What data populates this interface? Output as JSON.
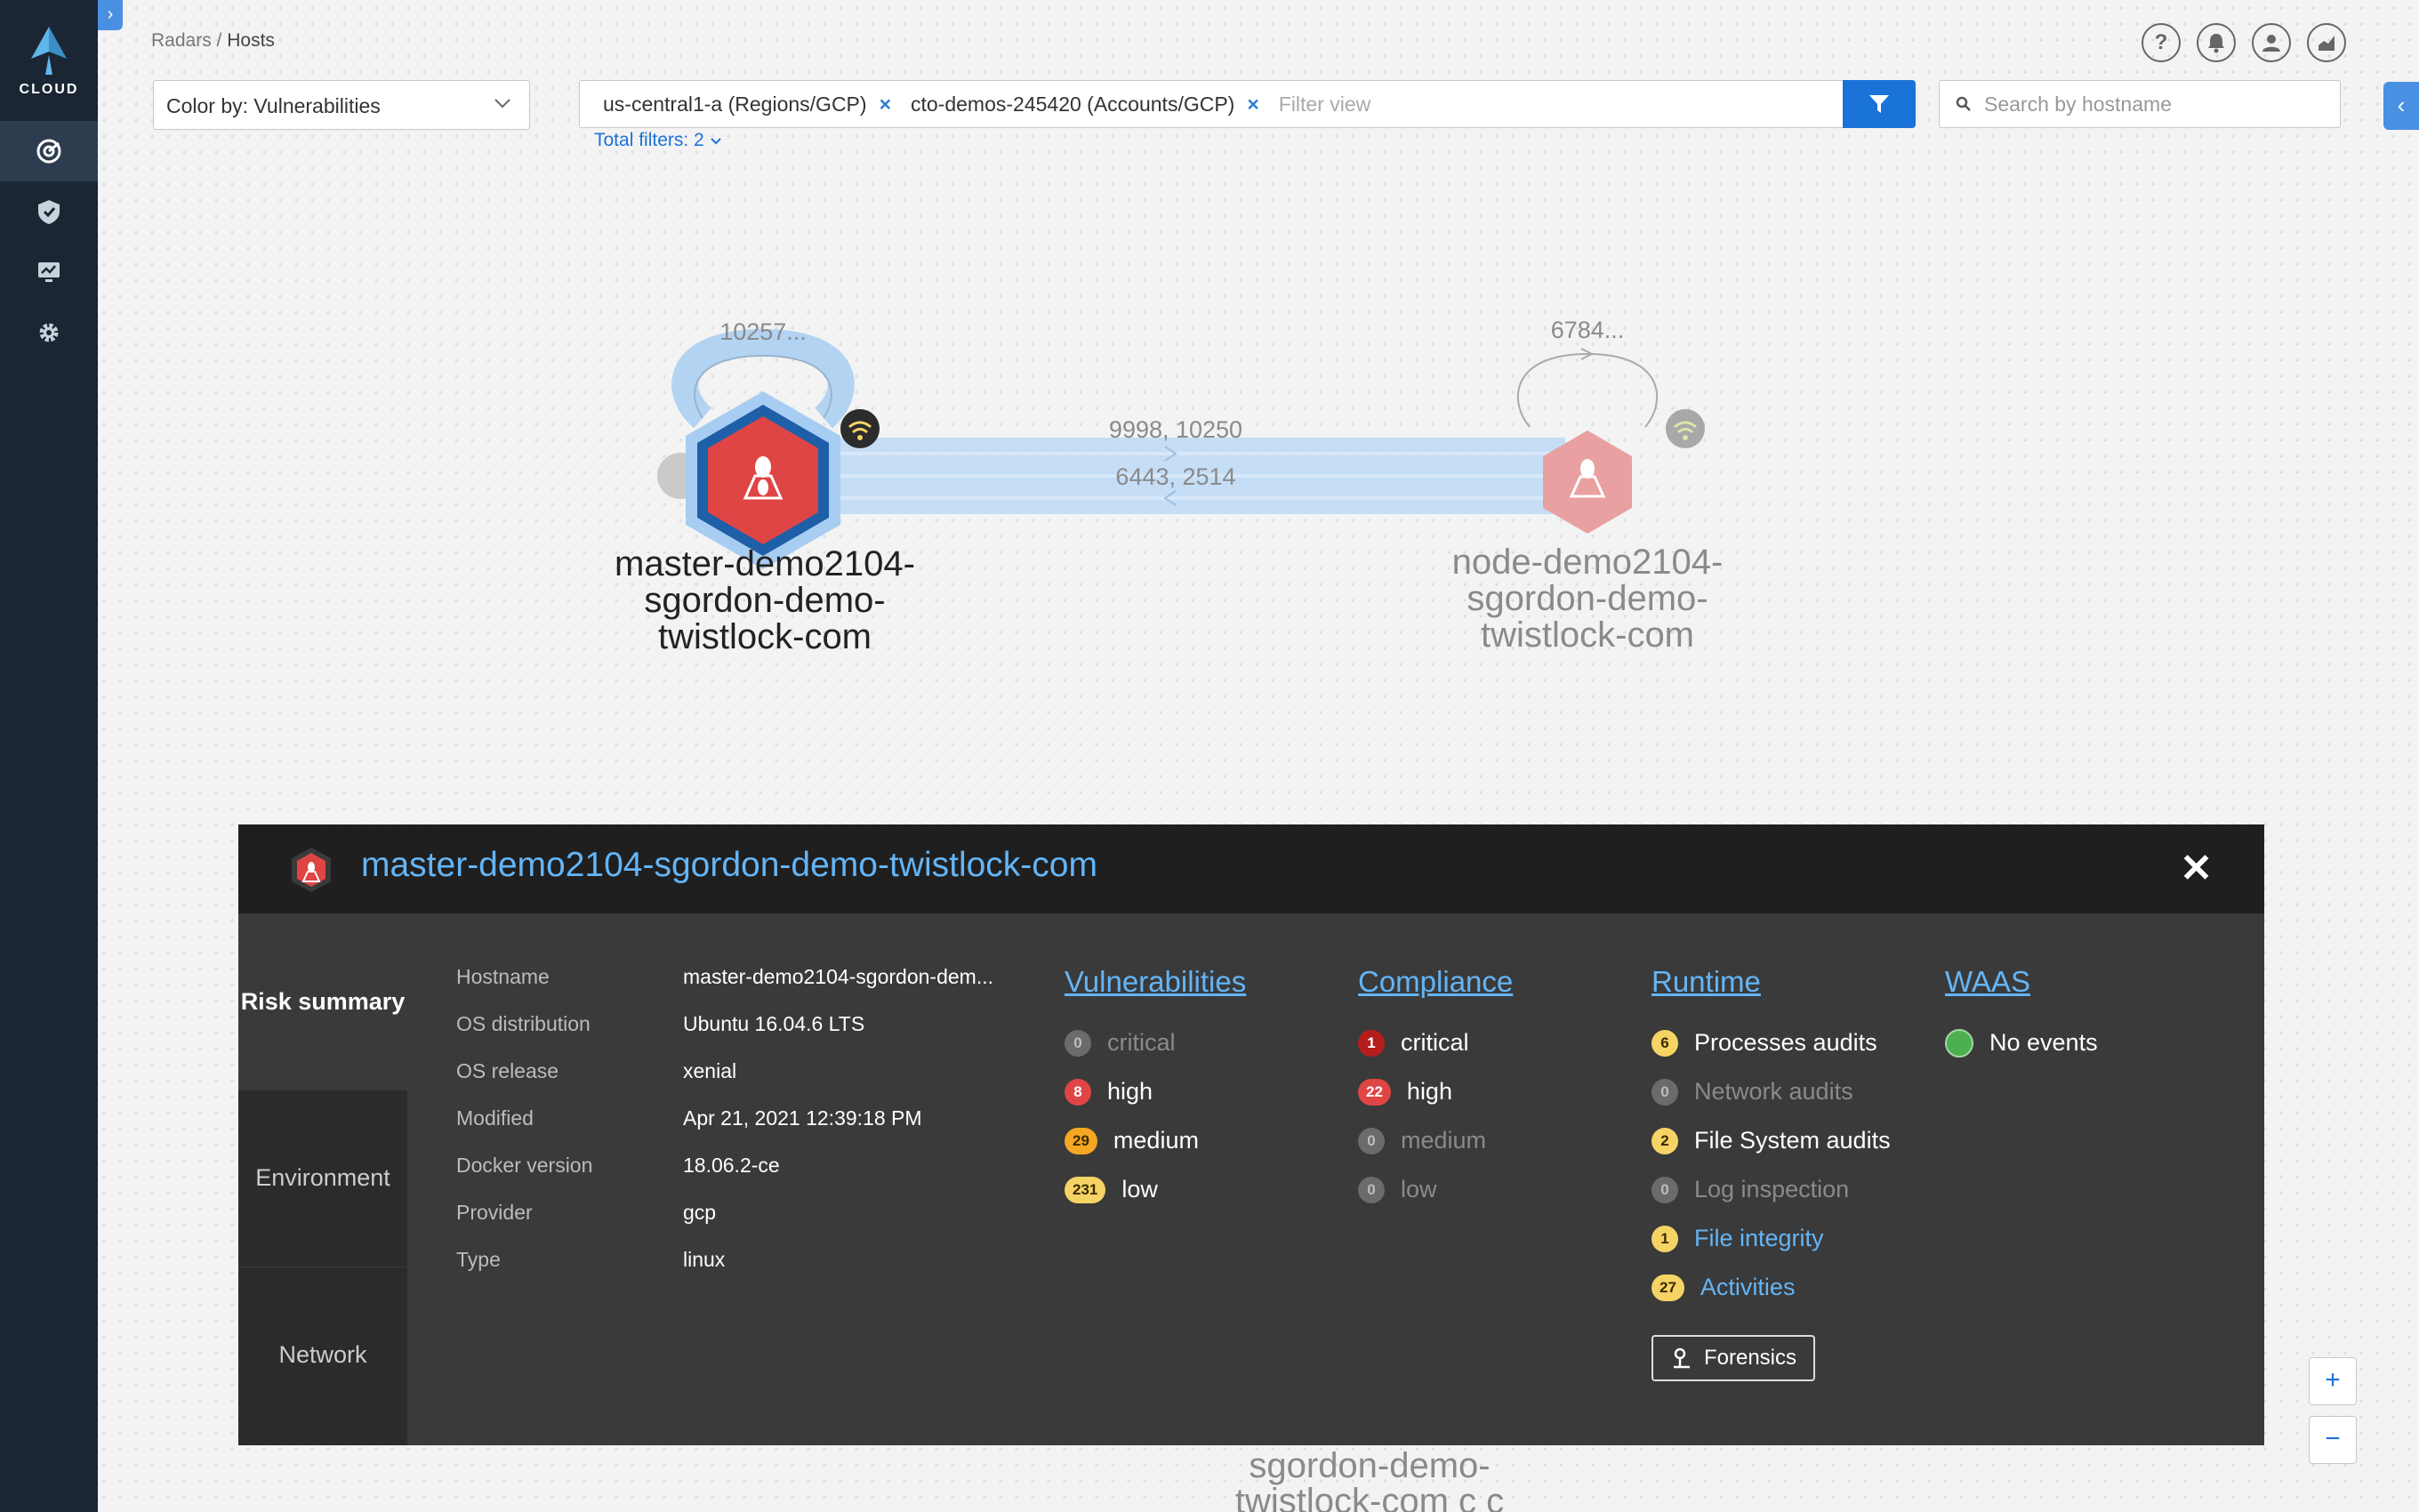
{
  "app": {
    "logo_text": "CLOUD"
  },
  "breadcrumb": {
    "parent": "Radars",
    "separator": " / ",
    "current": "Hosts"
  },
  "toolbar": {
    "color_by": "Color by: Vulnerabilities",
    "filters": [
      {
        "label": "us-central1-a (Regions/GCP)"
      },
      {
        "label": "cto-demos-245420 (Accounts/GCP)"
      }
    ],
    "filter_placeholder": "Filter view",
    "search_placeholder": "Search by hostname",
    "total_filters": "Total filters: 2",
    "remove_symbol": "×"
  },
  "graph": {
    "master_ports_top": "10257...",
    "node_ports_top": "6784...",
    "edge_label_1": "9998, 10250",
    "edge_label_2": "6443, 2514",
    "master_label": [
      "master-demo2104-",
      "sgordon-demo-",
      "twistlock-com"
    ],
    "node_label": [
      "node-demo2104-",
      "sgordon-demo-",
      "twistlock-com"
    ],
    "bottom_label": [
      "sgordon-demo-",
      "twistlock-com c c"
    ]
  },
  "panel": {
    "title": "master-demo2104-sgordon-demo-twistlock-com",
    "close_symbol": "✕",
    "tabs": [
      "Risk summary",
      "Environment",
      "Network"
    ],
    "info": [
      {
        "key": "Hostname",
        "value": "master-demo2104-sgordon-dem..."
      },
      {
        "key": "OS distribution",
        "value": "Ubuntu 16.04.6 LTS"
      },
      {
        "key": "OS release",
        "value": "xenial"
      },
      {
        "key": "Modified",
        "value": "Apr 21, 2021 12:39:18 PM"
      },
      {
        "key": "Docker version",
        "value": "18.06.2-ce"
      },
      {
        "key": "Provider",
        "value": "gcp"
      },
      {
        "key": "Type",
        "value": "linux"
      }
    ],
    "vulnerabilities": {
      "title": "Vulnerabilities",
      "rows": [
        {
          "count": "0",
          "label": "critical"
        },
        {
          "count": "8",
          "label": "high"
        },
        {
          "count": "29",
          "label": "medium"
        },
        {
          "count": "231",
          "label": "low"
        }
      ]
    },
    "compliance": {
      "title": "Compliance",
      "rows": [
        {
          "count": "1",
          "label": "critical"
        },
        {
          "count": "22",
          "label": "high"
        },
        {
          "count": "0",
          "label": "medium"
        },
        {
          "count": "0",
          "label": "low"
        }
      ]
    },
    "runtime": {
      "title": "Runtime",
      "rows": [
        {
          "count": "6",
          "label": "Processes audits"
        },
        {
          "count": "0",
          "label": "Network audits"
        },
        {
          "count": "2",
          "label": "File System audits"
        },
        {
          "count": "0",
          "label": "Log inspection"
        },
        {
          "count": "1",
          "label": "File integrity"
        },
        {
          "count": "27",
          "label": "Activities"
        }
      ],
      "forensics_label": "Forensics"
    },
    "waas": {
      "title": "WAAS",
      "status": "No events"
    }
  },
  "zoom": {
    "in": "+",
    "out": "−"
  },
  "colors": {
    "accent": "#1a73d9",
    "link": "#64b5f6",
    "critical": "#b71c1c",
    "high": "#e04545",
    "medium": "#f5a623",
    "low": "#f6d365"
  }
}
